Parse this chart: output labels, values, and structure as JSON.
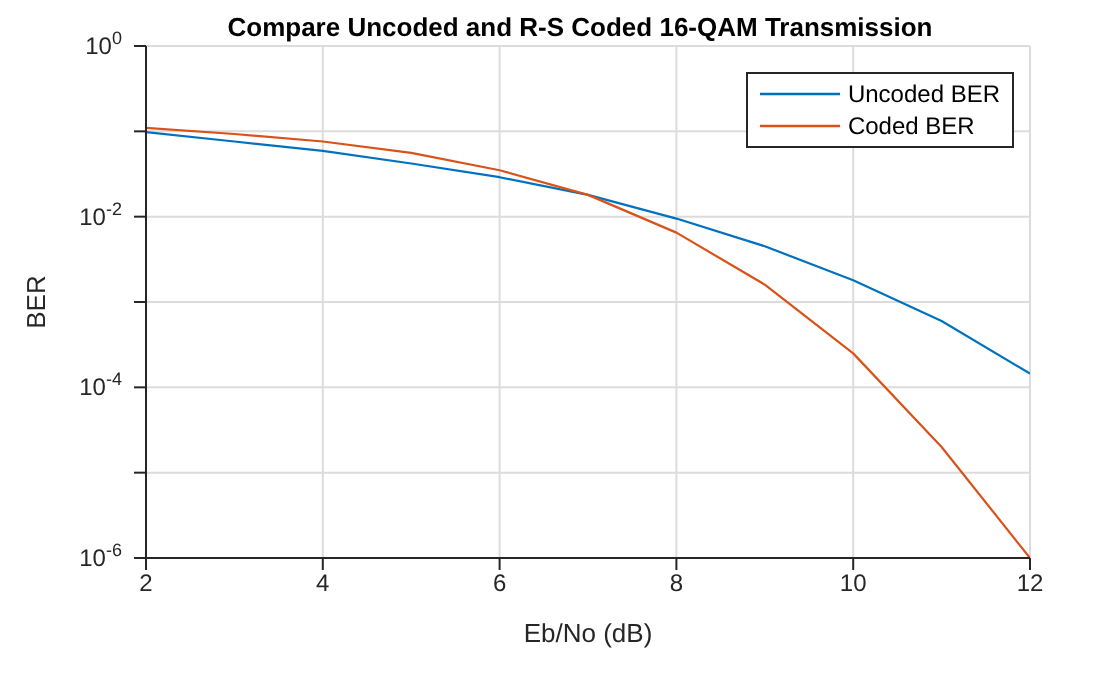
{
  "chart_data": {
    "type": "line",
    "title": "Compare Uncoded and R-S Coded 16-QAM Transmission",
    "xlabel": "Eb/No (dB)",
    "ylabel": "BER",
    "x": [
      2,
      3,
      4,
      5,
      6,
      7,
      8,
      9,
      10,
      11,
      12
    ],
    "series": [
      {
        "name": "Uncoded BER",
        "color": "#0072bd",
        "values": [
          0.098,
          0.076,
          0.059,
          0.042,
          0.029,
          0.018,
          0.0095,
          0.0045,
          0.0018,
          0.0006,
          0.000145
        ]
      },
      {
        "name": "Coded BER",
        "color": "#d95319",
        "values": [
          0.11,
          0.093,
          0.076,
          0.056,
          0.035,
          0.018,
          0.0065,
          0.0016,
          0.00025,
          2e-05,
          1e-06
        ]
      }
    ],
    "xlim": [
      2,
      12
    ],
    "xticks": [
      2,
      4,
      6,
      8,
      10,
      12
    ],
    "ylim": [
      1e-06,
      1
    ],
    "yticks": [
      {
        "value": 1e-06,
        "label": "10$^{-6}$"
      },
      {
        "value": 1e-05,
        "label": null
      },
      {
        "value": 0.0001,
        "label": "10$^{-4}$"
      },
      {
        "value": 0.001,
        "label": null
      },
      {
        "value": 0.01,
        "label": "10$^{-2}$"
      },
      {
        "value": 0.1,
        "label": null
      },
      {
        "value": 1,
        "label": "10$^{0}$"
      }
    ],
    "log": "y",
    "grid": true,
    "legend": "top right",
    "marker": "none",
    "line_style": "solid"
  }
}
